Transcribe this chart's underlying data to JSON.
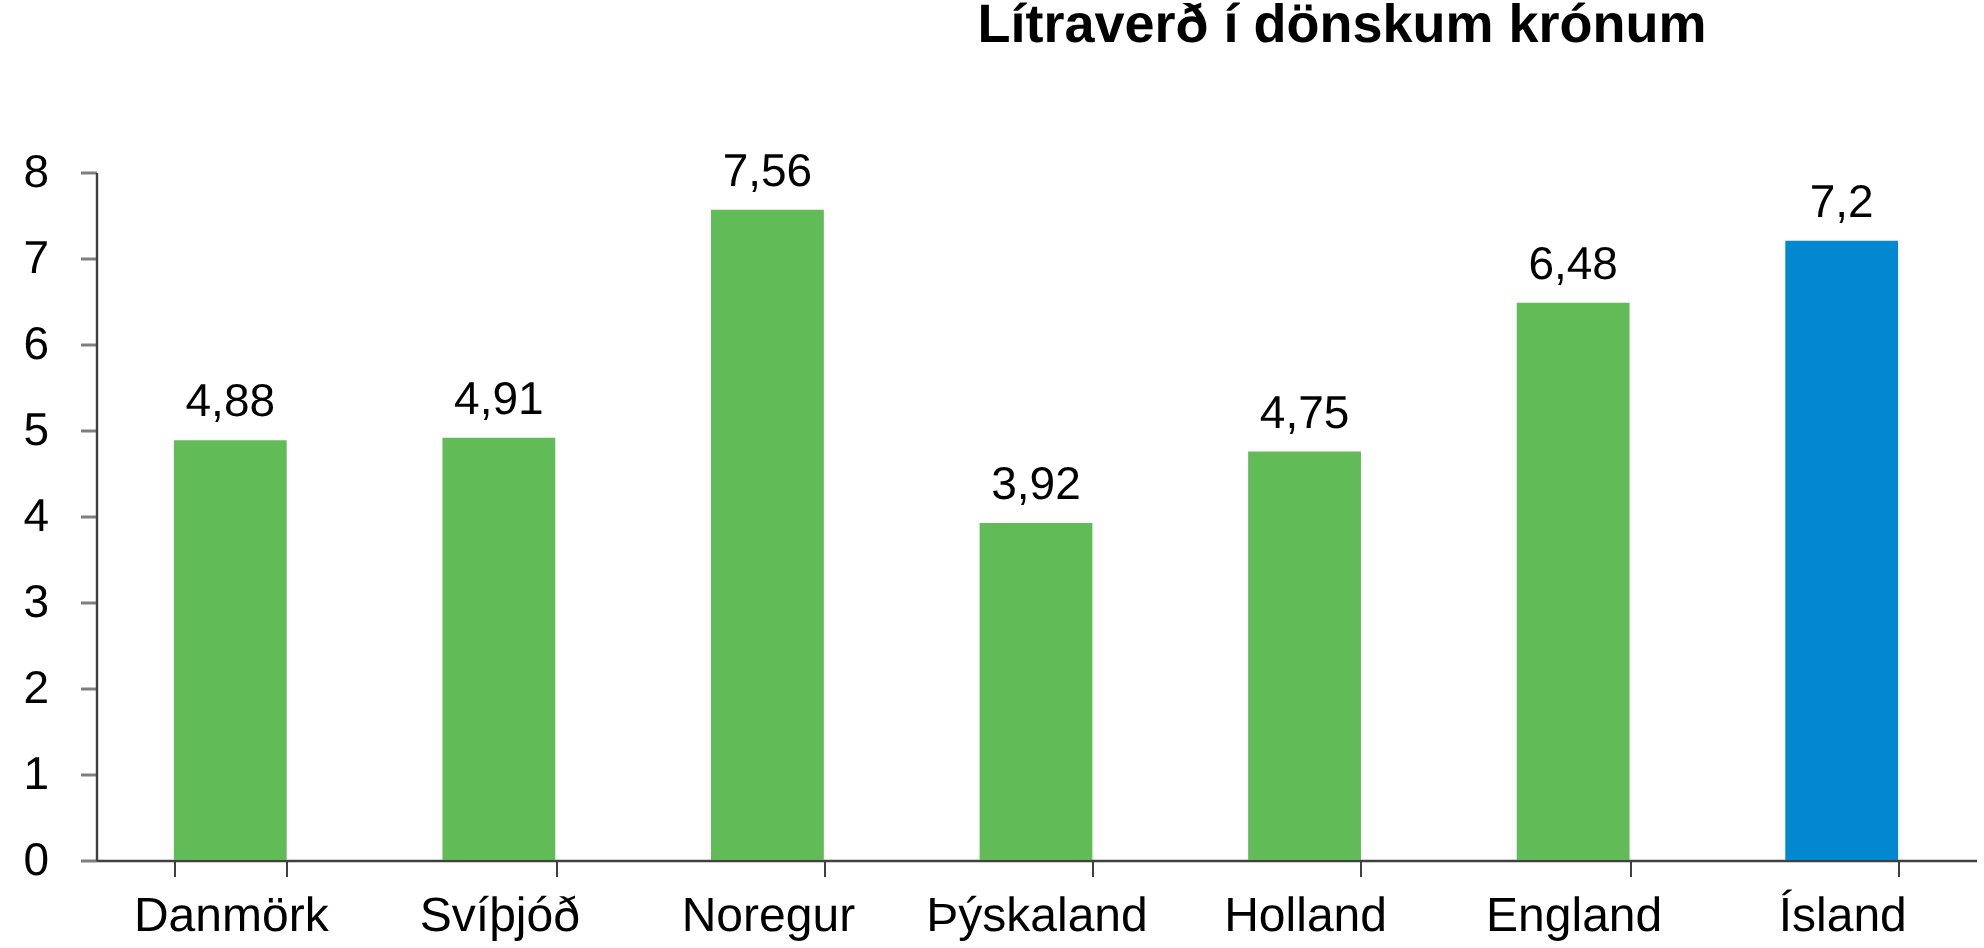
{
  "chart_data": {
    "type": "bar",
    "title": "Lítraverð í dönskum krónum",
    "categories": [
      "Danmörk",
      "Svíþjóð",
      "Noregur",
      "Þýskaland",
      "Holland",
      "England",
      "Ísland"
    ],
    "values": [
      4.88,
      4.91,
      7.56,
      3.92,
      4.75,
      6.48,
      7.2
    ],
    "colors": [
      "#61bb57",
      "#61bb57",
      "#61bb57",
      "#61bb57",
      "#61bb57",
      "#61bb57",
      "#0288d1"
    ],
    "value_labels": [
      "4,88",
      "4,91",
      "7,56",
      "3,92",
      "4,75",
      "6,48",
      "7,2"
    ],
    "ylim": [
      0,
      8
    ],
    "yticks": [
      0,
      1,
      2,
      3,
      4,
      5,
      6,
      7,
      8
    ]
  }
}
